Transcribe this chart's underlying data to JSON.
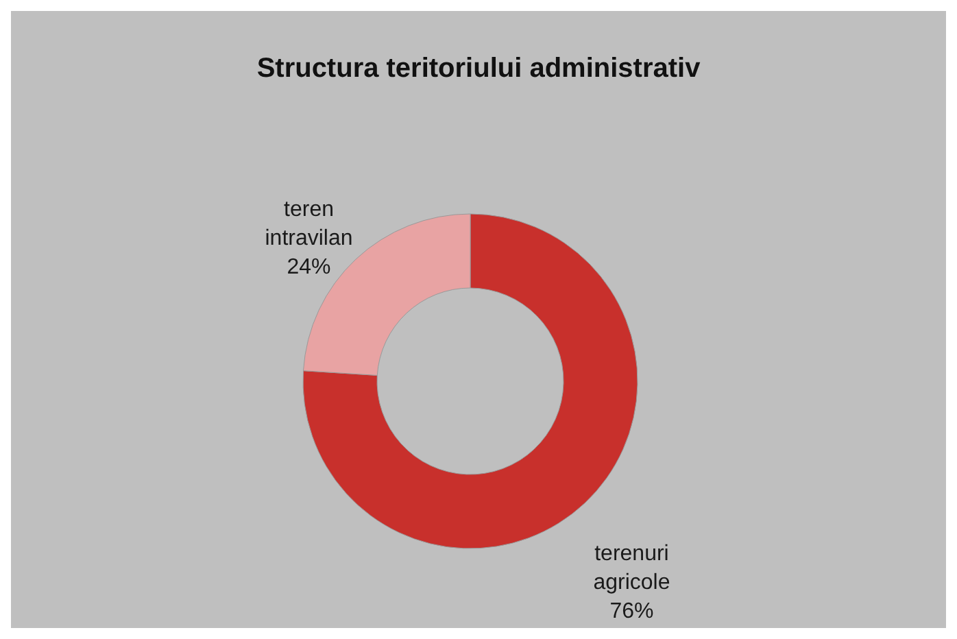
{
  "chart_data": {
    "type": "donut",
    "title": "Structura teritoriului administrativ",
    "categories": [
      "terenuri agricole",
      "teren intravilan"
    ],
    "values": [
      76,
      24
    ],
    "colors": [
      "#c8302c",
      "#e8a3a3"
    ],
    "value_labels": [
      "76%",
      "24%"
    ]
  }
}
